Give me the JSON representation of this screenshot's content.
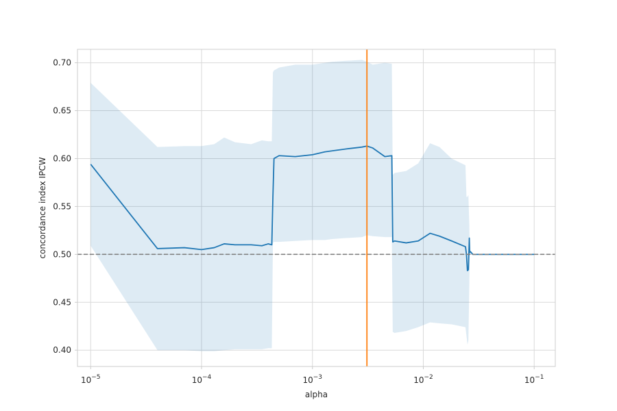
{
  "chart_data": {
    "type": "line",
    "xlabel": "alpha",
    "ylabel": "concordance index IPCW",
    "xscale": "log",
    "xlim": [
      7.6e-06,
      0.155
    ],
    "ylim": [
      0.383,
      0.714
    ],
    "grid": true,
    "x_ticks": [
      {
        "value": 1e-05,
        "base": "10",
        "exp": "−5"
      },
      {
        "value": 0.0001,
        "base": "10",
        "exp": "−4"
      },
      {
        "value": 0.001,
        "base": "10",
        "exp": "−3"
      },
      {
        "value": 0.01,
        "base": "10",
        "exp": "−2"
      },
      {
        "value": 0.1,
        "base": "10",
        "exp": "−1"
      }
    ],
    "y_ticks": [
      {
        "value": 0.4,
        "label": "0.40"
      },
      {
        "value": 0.45,
        "label": "0.45"
      },
      {
        "value": 0.5,
        "label": "0.50"
      },
      {
        "value": 0.55,
        "label": "0.55"
      },
      {
        "value": 0.6,
        "label": "0.60"
      },
      {
        "value": 0.65,
        "label": "0.65"
      },
      {
        "value": 0.7,
        "label": "0.70"
      }
    ],
    "reference_line": {
      "y": 0.5,
      "style": "dashed",
      "color": "#808080"
    },
    "selected_alpha": {
      "x": 0.0031,
      "color": "#ff7f0e"
    },
    "series": [
      {
        "color": "#1f77b4",
        "band_color": "#1f77b4",
        "x": [
          1e-05,
          4e-05,
          7e-05,
          0.0001,
          0.00013,
          0.00016,
          0.0002,
          0.00028,
          0.00035,
          0.0004,
          0.00043,
          0.00044,
          0.00045,
          0.0005,
          0.0007,
          0.001,
          0.0013,
          0.0015,
          0.002,
          0.0028,
          0.0031,
          0.0035,
          0.0045,
          0.0052,
          0.0053,
          0.0055,
          0.007,
          0.009,
          0.0115,
          0.014,
          0.018,
          0.024,
          0.0245,
          0.025,
          0.0255,
          0.026,
          0.0262,
          0.0265,
          0.028,
          0.1
        ],
        "mean": [
          0.594,
          0.506,
          0.507,
          0.505,
          0.507,
          0.511,
          0.51,
          0.51,
          0.509,
          0.511,
          0.51,
          0.56,
          0.6,
          0.603,
          0.602,
          0.604,
          0.607,
          0.608,
          0.61,
          0.612,
          0.613,
          0.611,
          0.602,
          0.603,
          0.513,
          0.514,
          0.512,
          0.514,
          0.522,
          0.519,
          0.514,
          0.508,
          0.5,
          0.483,
          0.484,
          0.517,
          0.502,
          0.503,
          0.5,
          0.5
        ],
        "upper": [
          0.679,
          0.612,
          0.613,
          0.613,
          0.615,
          0.622,
          0.617,
          0.615,
          0.619,
          0.618,
          0.618,
          0.69,
          0.692,
          0.695,
          0.698,
          0.698,
          0.7,
          0.701,
          0.702,
          0.703,
          0.701,
          0.698,
          0.7,
          0.699,
          0.583,
          0.585,
          0.587,
          0.595,
          0.616,
          0.612,
          0.6,
          0.593,
          0.56,
          0.56,
          0.562,
          0.53,
          0.503,
          0.502,
          0.5,
          0.5
        ],
        "lower": [
          0.509,
          0.4,
          0.4,
          0.399,
          0.399,
          0.4,
          0.401,
          0.401,
          0.401,
          0.402,
          0.402,
          0.512,
          0.513,
          0.513,
          0.514,
          0.515,
          0.515,
          0.516,
          0.517,
          0.518,
          0.52,
          0.519,
          0.518,
          0.518,
          0.419,
          0.418,
          0.42,
          0.424,
          0.429,
          0.428,
          0.427,
          0.424,
          0.415,
          0.406,
          0.41,
          0.47,
          0.5,
          0.5,
          0.5,
          0.5
        ]
      }
    ]
  }
}
